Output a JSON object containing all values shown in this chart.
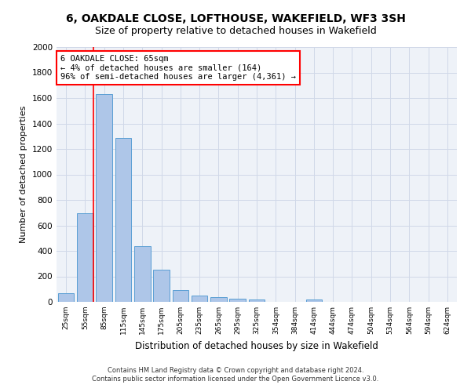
{
  "title1": "6, OAKDALE CLOSE, LOFTHOUSE, WAKEFIELD, WF3 3SH",
  "title2": "Size of property relative to detached houses in Wakefield",
  "xlabel": "Distribution of detached houses by size in Wakefield",
  "ylabel": "Number of detached properties",
  "footnote1": "Contains HM Land Registry data © Crown copyright and database right 2024.",
  "footnote2": "Contains public sector information licensed under the Open Government Licence v3.0.",
  "bar_labels": [
    "25sqm",
    "55sqm",
    "85sqm",
    "115sqm",
    "145sqm",
    "175sqm",
    "205sqm",
    "235sqm",
    "265sqm",
    "295sqm",
    "325sqm",
    "354sqm",
    "384sqm",
    "414sqm",
    "444sqm",
    "474sqm",
    "504sqm",
    "534sqm",
    "564sqm",
    "594sqm",
    "624sqm"
  ],
  "bar_values": [
    65,
    695,
    1630,
    1285,
    440,
    255,
    95,
    48,
    35,
    25,
    18,
    0,
    0,
    20,
    0,
    0,
    0,
    0,
    0,
    0,
    0
  ],
  "bar_color": "#aec6e8",
  "bar_edge_color": "#5a9fd4",
  "annotation_text": "6 OAKDALE CLOSE: 65sqm\n← 4% of detached houses are smaller (164)\n96% of semi-detached houses are larger (4,361) →",
  "annotation_box_color": "white",
  "annotation_border_color": "red",
  "highlight_line_color": "red",
  "ylim": [
    0,
    2000
  ],
  "yticks": [
    0,
    200,
    400,
    600,
    800,
    1000,
    1200,
    1400,
    1600,
    1800,
    2000
  ],
  "grid_color": "#d0d8e8",
  "bg_color": "#eef2f8",
  "title1_fontsize": 10,
  "title2_fontsize": 9,
  "xlabel_fontsize": 8.5,
  "ylabel_fontsize": 8,
  "annot_fontsize": 7.5
}
